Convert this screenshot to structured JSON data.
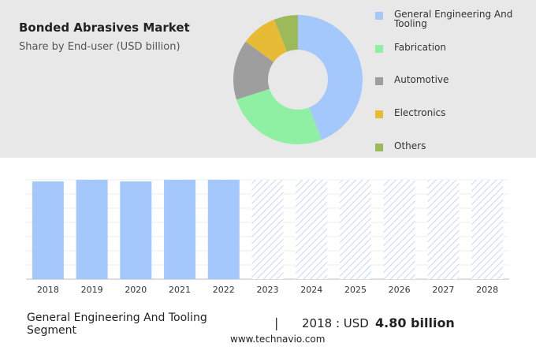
{
  "chart_data": [
    {
      "type": "pie",
      "donut": true,
      "title": "Bonded Abrasives Market",
      "subtitle": "Share by End-user (USD billion)",
      "categories": [
        "General Engineering And Tooling",
        "Fabrication",
        "Automotive",
        "Electronics",
        "Others"
      ],
      "values": [
        44,
        26,
        15,
        9,
        6
      ],
      "colors": [
        "#a4c8fb",
        "#8ff0a4",
        "#9e9e9e",
        "#e8bb36",
        "#9cba5c"
      ]
    },
    {
      "type": "bar",
      "categories": [
        "2018",
        "2019",
        "2020",
        "2021",
        "2022",
        "2023",
        "2024",
        "2025",
        "2026",
        "2027",
        "2028"
      ],
      "values": [
        4.8,
        4.88,
        4.8,
        4.88,
        4.88,
        null,
        null,
        null,
        null,
        null,
        null
      ],
      "color": "#a4c8fb"
    }
  ],
  "footer": {
    "segment": "General Engineering And Tooling Segment",
    "year_label": "2018 : USD",
    "value_label": "4.80 billion",
    "source": "www.technavio.com"
  }
}
